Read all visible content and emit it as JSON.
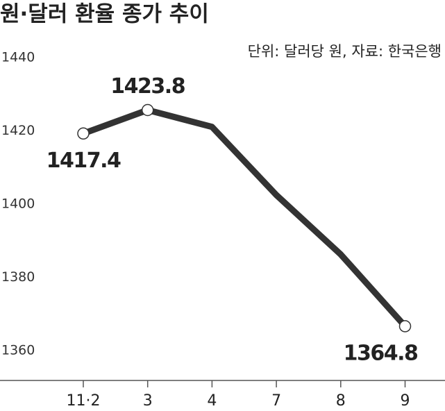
{
  "chart_data": {
    "type": "line",
    "title": "원·달러 환율 종가 추이",
    "subtitle": "단위: 달러당 원, 자료: 한국은행",
    "categories": [
      "11·2",
      "3",
      "4",
      "7",
      "8",
      "9"
    ],
    "values": [
      1417.4,
      1423.8,
      1419.2,
      1400.6,
      1384.4,
      1364.8
    ],
    "value_labels": [
      "1417.4",
      "1423.8",
      null,
      null,
      null,
      "1364.8"
    ],
    "color": "#333333",
    "ylim": [
      1350,
      1440
    ],
    "yticks": [
      1360,
      1380,
      1400,
      1420,
      1440
    ],
    "grid": false
  }
}
